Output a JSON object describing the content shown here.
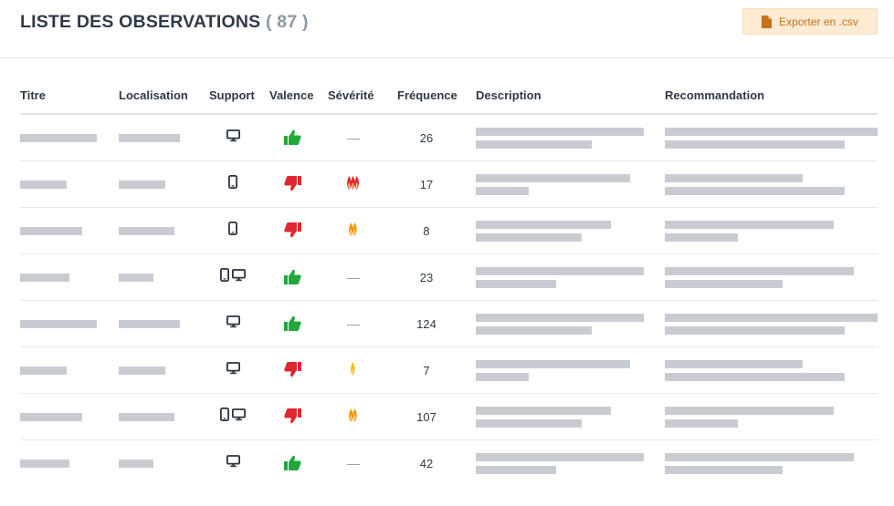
{
  "header": {
    "title": "LISTE DES OBSERVATIONS",
    "count": "( 87 )",
    "export_label": "Exporter en .csv",
    "export_icon": "file-icon",
    "accent_color": "#c8701a"
  },
  "columns": {
    "titre": "Titre",
    "localisation": "Localisation",
    "support": "Support",
    "valence": "Valence",
    "severite": "Sévérité",
    "frequence": "Fréquence",
    "description": "Description",
    "recommandation": "Recommandation"
  },
  "colors": {
    "positive": "#22a83a",
    "negative": "#e0262f",
    "severity_high": "#e0262f",
    "severity_medium": "#f29a16",
    "severity_low": "#f4c40f"
  },
  "rows": [
    {
      "support": "desktop",
      "valence": "positive",
      "severity": "none",
      "frequence": "26"
    },
    {
      "support": "mobile",
      "valence": "negative",
      "severity": "high",
      "frequence": "17"
    },
    {
      "support": "mobile",
      "valence": "negative",
      "severity": "medium",
      "frequence": "8"
    },
    {
      "support": "mobile+desktop",
      "valence": "positive",
      "severity": "none",
      "frequence": "23"
    },
    {
      "support": "desktop",
      "valence": "positive",
      "severity": "none",
      "frequence": "124"
    },
    {
      "support": "desktop",
      "valence": "negative",
      "severity": "low",
      "frequence": "7"
    },
    {
      "support": "mobile+desktop",
      "valence": "negative",
      "severity": "medium",
      "frequence": "107"
    },
    {
      "support": "desktop",
      "valence": "positive",
      "severity": "none",
      "frequence": "42"
    }
  ]
}
